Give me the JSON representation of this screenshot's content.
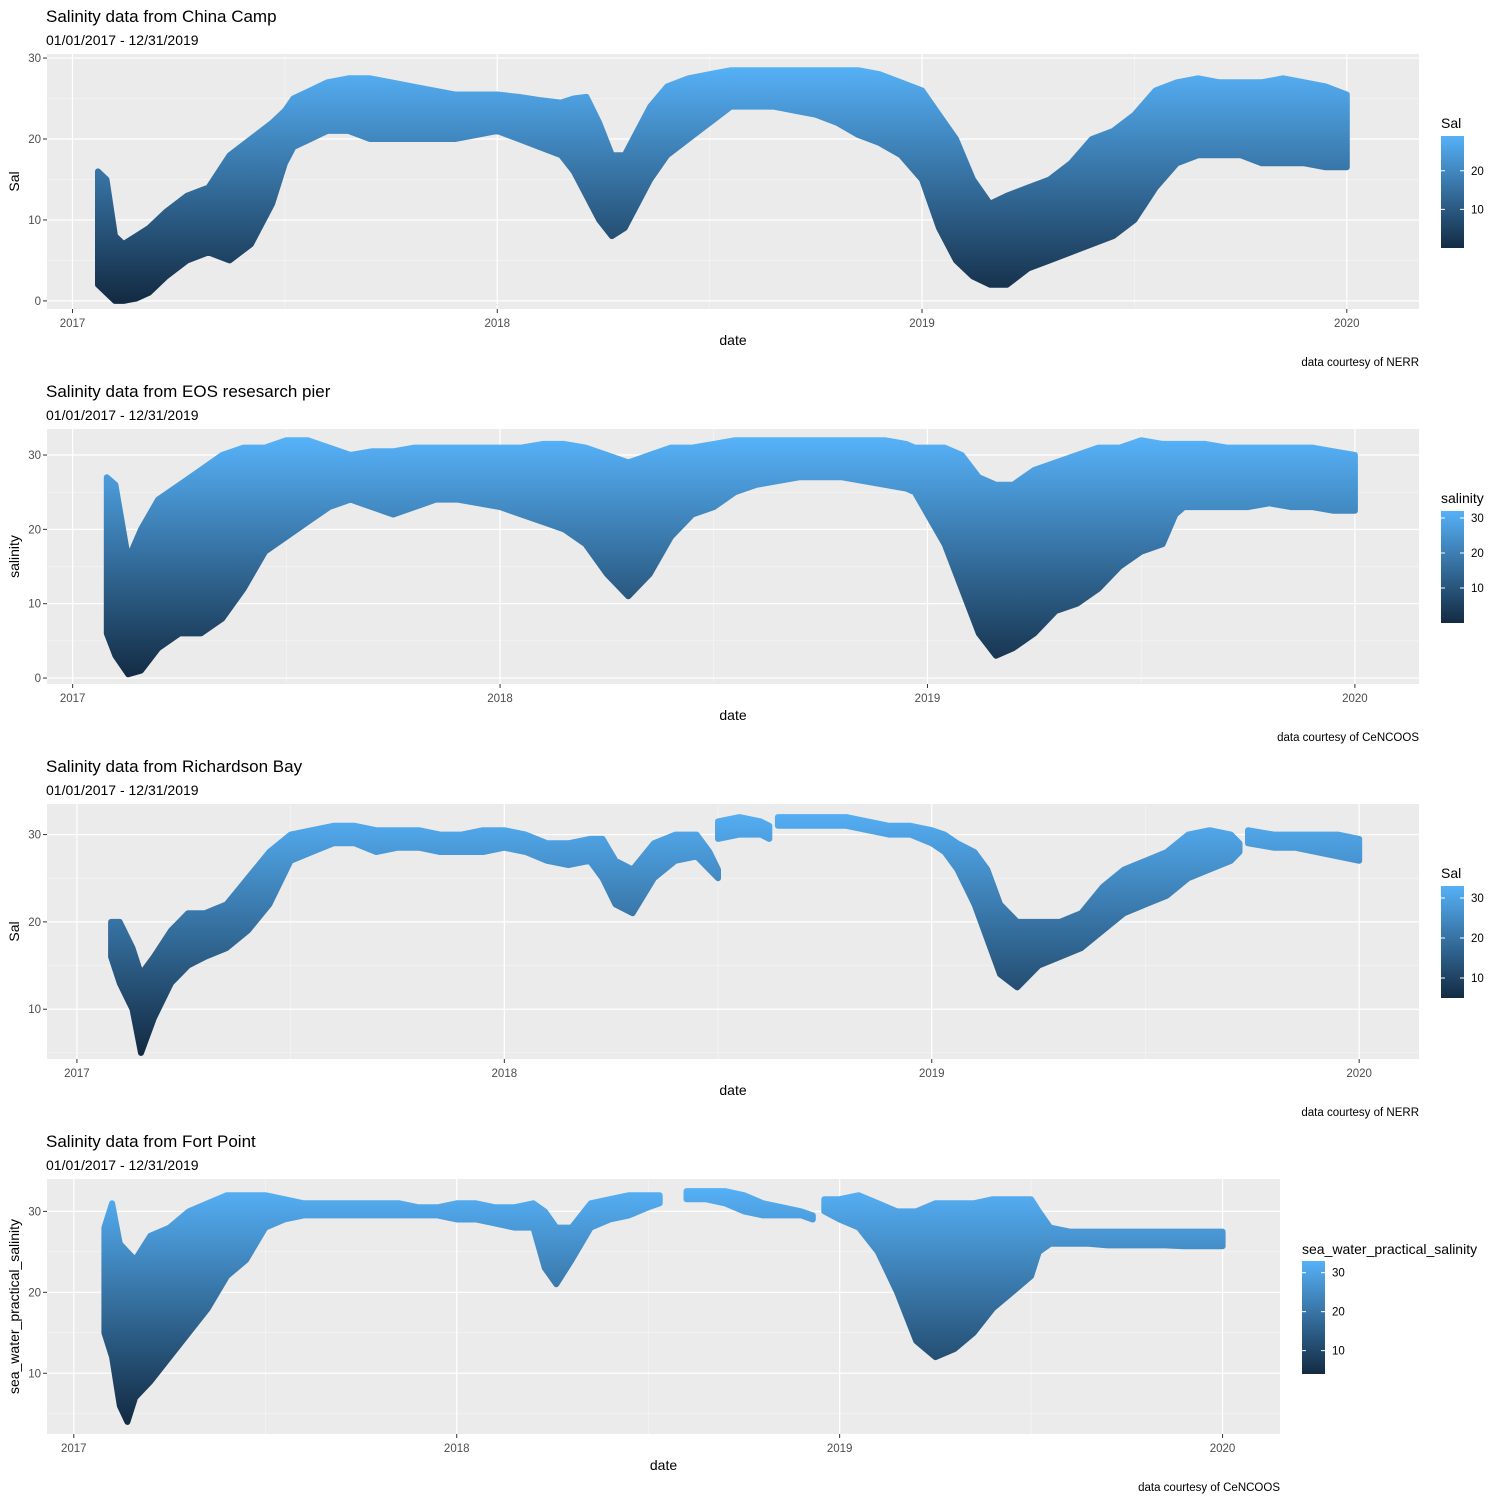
{
  "chart_data": [
    {
      "type": "scatter",
      "title": "Salinity data from China Camp",
      "subtitle": "01/01/2017 - 12/31/2019",
      "xlabel": "date",
      "ylabel": "Sal",
      "caption": "data courtesy of NERR",
      "legend": {
        "title": "Sal",
        "placement": "right",
        "range": [
          0,
          29
        ],
        "ticks": [
          10,
          20
        ]
      },
      "x_ticks": [
        "2017",
        "2018",
        "2019",
        "2020"
      ],
      "x_tick_years": [
        2017,
        2018,
        2019,
        2020
      ],
      "xlim": [
        2016.94,
        2020.17
      ],
      "y_ticks": [
        0,
        10,
        20,
        30
      ],
      "ylim": [
        -1,
        30.5
      ],
      "grid": true,
      "envelope": {
        "x": [
          2017.06,
          2017.08,
          2017.1,
          2017.12,
          2017.15,
          2017.18,
          2017.22,
          2017.27,
          2017.32,
          2017.37,
          2017.42,
          2017.47,
          2017.5,
          2017.52,
          2017.56,
          2017.6,
          2017.65,
          2017.7,
          2017.75,
          2017.8,
          2017.85,
          2017.9,
          2017.95,
          2018.0,
          2018.05,
          2018.1,
          2018.15,
          2018.18,
          2018.21,
          2018.24,
          2018.27,
          2018.3,
          2018.33,
          2018.36,
          2018.4,
          2018.45,
          2018.5,
          2018.55,
          2018.6,
          2018.65,
          2018.7,
          2018.75,
          2018.8,
          2018.85,
          2018.9,
          2018.95,
          2019.0,
          2019.04,
          2019.08,
          2019.12,
          2019.16,
          2019.2,
          2019.25,
          2019.3,
          2019.35,
          2019.4,
          2019.45,
          2019.5,
          2019.55,
          2019.6,
          2019.65,
          2019.7,
          2019.75,
          2019.8,
          2019.85,
          2019.9,
          2019.95,
          2020.0
        ],
        "high": [
          16,
          15,
          8,
          7,
          8,
          9,
          11,
          13,
          14,
          18,
          20,
          22,
          23.5,
          25,
          26,
          27,
          27.5,
          27.5,
          27,
          26.5,
          26,
          25.5,
          25.5,
          25.5,
          25.2,
          24.8,
          24.5,
          25,
          25.2,
          22,
          18,
          18,
          21,
          24,
          26.5,
          27.5,
          28,
          28.5,
          28.5,
          28.5,
          28.5,
          28.5,
          28.5,
          28.5,
          28,
          27,
          26,
          23,
          20,
          15,
          12,
          13,
          14,
          15,
          17,
          20,
          21,
          23,
          26,
          27,
          27.5,
          27,
          27,
          27,
          27.5,
          27,
          26.5,
          25.5
        ],
        "low": [
          2,
          1,
          0,
          0,
          0.3,
          1,
          3,
          5,
          6,
          5,
          7,
          12,
          17,
          19,
          20,
          21,
          21,
          20,
          20,
          20,
          20,
          20,
          20.5,
          21,
          20,
          19,
          18,
          16,
          13,
          10,
          8,
          9,
          12,
          15,
          18,
          20,
          22,
          24,
          24,
          24,
          23.5,
          23,
          22,
          20.5,
          19.5,
          18,
          15,
          9,
          5,
          3,
          2,
          2,
          4,
          5,
          6,
          7,
          8,
          10,
          14,
          17,
          18,
          18,
          18,
          17,
          17,
          17,
          16.5,
          16.5
        ]
      }
    },
    {
      "type": "scatter",
      "title": "Salinity data from EOS resesarch pier",
      "subtitle": "01/01/2017 - 12/31/2019",
      "xlabel": "date",
      "ylabel": "salinity",
      "caption": "data courtesy of CeNCOOS",
      "legend": {
        "title": "salinity",
        "placement": "right",
        "range": [
          0,
          32
        ],
        "ticks": [
          10,
          20,
          30
        ]
      },
      "x_ticks": [
        "2017",
        "2018",
        "2019",
        "2020"
      ],
      "x_tick_years": [
        2017,
        2018,
        2019,
        2020
      ],
      "xlim": [
        2016.94,
        2020.15
      ],
      "y_ticks": [
        0,
        10,
        20,
        30
      ],
      "ylim": [
        -0.8,
        33.5
      ],
      "grid": true,
      "envelope": {
        "x": [
          2017.08,
          2017.1,
          2017.13,
          2017.16,
          2017.2,
          2017.25,
          2017.3,
          2017.35,
          2017.4,
          2017.45,
          2017.5,
          2017.55,
          2017.6,
          2017.65,
          2017.7,
          2017.75,
          2017.8,
          2017.85,
          2017.9,
          2017.95,
          2018.0,
          2018.05,
          2018.1,
          2018.15,
          2018.2,
          2018.25,
          2018.3,
          2018.35,
          2018.4,
          2018.45,
          2018.5,
          2018.55,
          2018.6,
          2018.65,
          2018.7,
          2018.75,
          2018.8,
          2018.85,
          2018.9,
          2018.95,
          2018.97,
          2019.0,
          2019.04,
          2019.08,
          2019.12,
          2019.16,
          2019.2,
          2019.25,
          2019.3,
          2019.35,
          2019.4,
          2019.45,
          2019.5,
          2019.55,
          2019.58,
          2019.6,
          2019.65,
          2019.7,
          2019.75,
          2019.8,
          2019.85,
          2019.9,
          2019.95,
          2020.0
        ],
        "high": [
          27,
          26,
          16,
          20,
          24,
          26,
          28,
          30,
          31,
          31,
          32,
          32,
          31,
          30,
          30.5,
          30.5,
          31,
          31,
          31,
          31,
          31,
          31,
          31.5,
          31.5,
          31,
          30,
          29,
          30,
          31,
          31,
          31.5,
          32,
          32,
          32,
          32,
          32,
          32,
          32,
          32,
          31.5,
          31,
          31,
          31,
          30,
          27,
          26,
          26,
          28,
          29,
          30,
          31,
          31,
          32,
          31.5,
          31.5,
          31.5,
          31.5,
          31,
          31,
          31,
          31,
          31,
          30.5,
          30
        ],
        "low": [
          6,
          3,
          0.5,
          1,
          4,
          6,
          6,
          8,
          12,
          17,
          19,
          21,
          23,
          24,
          23,
          22,
          23,
          24,
          24,
          23.5,
          23,
          22,
          21,
          20,
          18,
          14,
          11,
          14,
          19,
          22,
          23,
          25,
          26,
          26.5,
          27,
          27,
          27,
          26.5,
          26,
          25.5,
          25,
          22,
          18,
          12,
          6,
          3,
          4,
          6,
          9,
          10,
          12,
          15,
          17,
          18,
          22,
          23,
          23,
          23,
          23,
          23.5,
          23,
          23,
          22.5,
          22.5
        ]
      }
    },
    {
      "type": "scatter",
      "title": "Salinity data from Richardson Bay",
      "subtitle": "01/01/2017 - 12/31/2019",
      "xlabel": "date",
      "ylabel": "Sal",
      "caption": "data courtesy of NERR",
      "legend": {
        "title": "Sal",
        "placement": "right",
        "range": [
          5,
          33
        ],
        "ticks": [
          10,
          20,
          30
        ]
      },
      "x_ticks": [
        "2017",
        "2018",
        "2019",
        "2020"
      ],
      "x_tick_years": [
        2017,
        2018,
        2019,
        2020
      ],
      "xlim": [
        2016.93,
        2020.14
      ],
      "y_ticks": [
        10,
        20,
        30
      ],
      "ylim": [
        4.3,
        33.5
      ],
      "grid": true,
      "envelope": {
        "x": [
          2017.08,
          2017.1,
          2017.13,
          2017.15,
          2017.18,
          2017.22,
          2017.26,
          2017.3,
          2017.35,
          2017.4,
          2017.45,
          2017.5,
          2017.55,
          2017.6,
          2017.65,
          2017.7,
          2017.75,
          2017.8,
          2017.85,
          2017.9,
          2017.95,
          2018.0,
          2018.05,
          2018.1,
          2018.15,
          2018.2,
          2018.23,
          2018.26,
          2018.3,
          2018.35,
          2018.4,
          2018.45,
          2018.48,
          2018.5,
          null,
          2018.5,
          2018.55,
          2018.6,
          2018.62,
          null,
          2018.64,
          2018.7,
          2018.75,
          2018.8,
          2018.85,
          2018.9,
          2018.95,
          2019.0,
          2019.03,
          2019.06,
          2019.1,
          2019.13,
          2019.16,
          2019.2,
          2019.25,
          2019.3,
          2019.35,
          2019.4,
          2019.45,
          2019.5,
          2019.55,
          2019.6,
          2019.65,
          2019.7,
          2019.72,
          null,
          2019.74,
          2019.8,
          2019.85,
          2019.9,
          2019.95,
          2020.0
        ],
        "high": [
          20,
          20,
          17,
          14,
          16,
          19,
          21,
          21,
          22,
          25,
          28,
          30,
          30.5,
          31,
          31,
          30.5,
          30.5,
          30.5,
          30,
          30,
          30.5,
          30.5,
          30,
          29,
          29,
          29.5,
          29.5,
          27,
          26,
          29,
          30,
          30,
          28,
          26,
          null,
          31.5,
          32,
          31.5,
          31,
          null,
          32,
          32,
          32,
          32,
          31.5,
          31,
          31,
          30.5,
          30,
          29,
          28,
          26,
          22,
          20,
          20,
          20,
          21,
          24,
          26,
          27,
          28,
          30,
          30.5,
          30,
          29,
          null,
          30.5,
          30,
          30,
          30,
          30,
          29.5
        ],
        "low": [
          16,
          13,
          10,
          5,
          9,
          13,
          15,
          16,
          17,
          19,
          22,
          27,
          28,
          29,
          29,
          28,
          28.5,
          28.5,
          28,
          28,
          28,
          28.5,
          28,
          27,
          26.5,
          27,
          25,
          22,
          21,
          25,
          27,
          27.5,
          26,
          25,
          null,
          29.5,
          30,
          30,
          29.5,
          null,
          31,
          31,
          31,
          31,
          30.5,
          30,
          30,
          29,
          28,
          26,
          22,
          18,
          14,
          12.5,
          15,
          16,
          17,
          19,
          21,
          22,
          23,
          25,
          26,
          27,
          28,
          null,
          29,
          28.5,
          28.5,
          28,
          27.5,
          27
        ]
      }
    },
    {
      "type": "scatter",
      "title": "Salinity data from Fort Point",
      "subtitle": "01/01/2017 - 12/31/2019",
      "xlabel": "date",
      "ylabel": "sea_water_practical_salinity",
      "caption": "data courtesy of CeNCOOS",
      "legend": {
        "title": "sea_water_practical_salinity",
        "placement": "right",
        "range": [
          4,
          33
        ],
        "ticks": [
          10,
          20,
          30
        ]
      },
      "x_ticks": [
        "2017",
        "2018",
        "2019",
        "2020"
      ],
      "x_tick_years": [
        2017,
        2018,
        2019,
        2020
      ],
      "xlim": [
        2016.93,
        2020.15
      ],
      "y_ticks": [
        10,
        20,
        30
      ],
      "ylim": [
        2.5,
        34
      ],
      "grid": true,
      "envelope": {
        "x": [
          2017.08,
          2017.1,
          2017.12,
          2017.14,
          2017.16,
          2017.2,
          2017.25,
          2017.3,
          2017.35,
          2017.4,
          2017.45,
          2017.5,
          2017.55,
          2017.6,
          2017.65,
          2017.7,
          2017.75,
          2017.8,
          2017.85,
          2017.9,
          2017.95,
          2018.0,
          2018.05,
          2018.1,
          2018.15,
          2018.2,
          2018.23,
          2018.26,
          2018.3,
          2018.35,
          2018.4,
          2018.45,
          2018.5,
          2018.53,
          null,
          2018.6,
          2018.65,
          2018.7,
          2018.75,
          2018.8,
          2018.85,
          2018.9,
          2018.93,
          null,
          2018.96,
          2019.0,
          2019.05,
          2019.1,
          2019.15,
          2019.2,
          2019.25,
          2019.3,
          2019.35,
          2019.4,
          2019.45,
          2019.5,
          2019.52,
          2019.55,
          2019.6,
          2019.65,
          2019.7,
          2019.75,
          2019.8,
          2019.85,
          2019.9,
          2019.95,
          2020.0
        ],
        "high": [
          28,
          31,
          26,
          25,
          24,
          27,
          28,
          30,
          31,
          32,
          32,
          32,
          31.5,
          31,
          31,
          31,
          31,
          31,
          31,
          30.5,
          30.5,
          31,
          31,
          30.5,
          30.5,
          31,
          30,
          28,
          28,
          31,
          31.5,
          32,
          32,
          32,
          null,
          32.5,
          32.5,
          32.5,
          32,
          31,
          30.5,
          30,
          29.5,
          null,
          31.5,
          31.5,
          32,
          31,
          30,
          30,
          31,
          31,
          31,
          31.5,
          31.5,
          31.5,
          30,
          28,
          27.5,
          27.5,
          27.5,
          27.5,
          27.5,
          27.5,
          27.5,
          27.5,
          27.5
        ],
        "low": [
          15,
          12,
          6,
          4,
          7,
          9,
          12,
          15,
          18,
          22,
          24,
          28,
          29,
          29.5,
          29.5,
          29.5,
          29.5,
          29.5,
          29.5,
          29.5,
          29.5,
          29,
          29,
          28.5,
          28,
          28,
          23,
          21,
          24,
          28,
          29,
          29.5,
          30.5,
          31,
          null,
          31.5,
          31.5,
          31,
          30,
          29.5,
          29.5,
          29.5,
          29,
          null,
          30,
          29,
          28,
          25,
          20,
          14,
          12,
          13,
          15,
          18,
          20,
          22,
          25,
          26,
          26,
          26,
          25.8,
          25.8,
          25.8,
          25.8,
          25.7,
          25.7,
          25.7
        ]
      }
    }
  ]
}
